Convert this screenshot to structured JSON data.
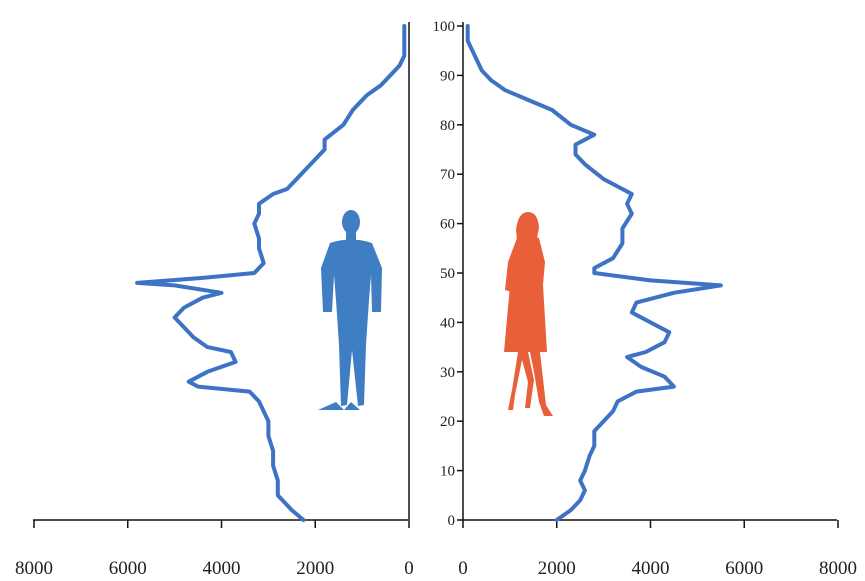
{
  "chart_data": {
    "type": "line",
    "title": "",
    "xlabel": "",
    "ylabel": "",
    "ylim": [
      0,
      100
    ],
    "y_ticks": [
      "0",
      "10",
      "20",
      "30",
      "40",
      "50",
      "60",
      "70",
      "80",
      "90",
      "100"
    ],
    "x_ticks_left": [
      "8000",
      "6000",
      "4000",
      "2000",
      "0"
    ],
    "x_ticks_right": [
      "0",
      "2000",
      "4000",
      "6000",
      "8000"
    ],
    "xlim": [
      0,
      8000
    ],
    "line_color": "#3d72c4",
    "series": [
      {
        "side": "left",
        "points": [
          [
            2250,
            0
          ],
          [
            2500,
            2
          ],
          [
            2800,
            5
          ],
          [
            2800,
            8
          ],
          [
            2900,
            11
          ],
          [
            2900,
            14
          ],
          [
            3000,
            17
          ],
          [
            3000,
            20
          ],
          [
            3100,
            22
          ],
          [
            3200,
            24
          ],
          [
            3400,
            26
          ],
          [
            4500,
            27
          ],
          [
            4700,
            28
          ],
          [
            4300,
            30
          ],
          [
            3700,
            32
          ],
          [
            3800,
            34
          ],
          [
            4300,
            35
          ],
          [
            4600,
            37
          ],
          [
            4800,
            39
          ],
          [
            5000,
            41
          ],
          [
            4800,
            43
          ],
          [
            4400,
            45
          ],
          [
            4000,
            46
          ],
          [
            5000,
            47.5
          ],
          [
            5800,
            48
          ],
          [
            4400,
            49
          ],
          [
            3300,
            50
          ],
          [
            3100,
            52
          ],
          [
            3200,
            55
          ],
          [
            3200,
            57
          ],
          [
            3300,
            60
          ],
          [
            3200,
            62
          ],
          [
            3200,
            64
          ],
          [
            2900,
            66
          ],
          [
            2600,
            67
          ],
          [
            2400,
            69
          ],
          [
            2100,
            72
          ],
          [
            1800,
            75
          ],
          [
            1800,
            77
          ],
          [
            1400,
            80
          ],
          [
            1200,
            83
          ],
          [
            900,
            86
          ],
          [
            600,
            88
          ],
          [
            400,
            90
          ],
          [
            200,
            92
          ],
          [
            100,
            94
          ],
          [
            100,
            98
          ],
          [
            100,
            100
          ]
        ]
      },
      {
        "side": "right",
        "points": [
          [
            2000,
            0
          ],
          [
            2300,
            2
          ],
          [
            2500,
            4
          ],
          [
            2600,
            6
          ],
          [
            2500,
            8
          ],
          [
            2600,
            10
          ],
          [
            2700,
            13
          ],
          [
            2800,
            15
          ],
          [
            2800,
            18
          ],
          [
            3000,
            20
          ],
          [
            3200,
            22
          ],
          [
            3300,
            24
          ],
          [
            3700,
            26
          ],
          [
            4500,
            27
          ],
          [
            4300,
            29
          ],
          [
            3800,
            31
          ],
          [
            3500,
            33
          ],
          [
            3900,
            34
          ],
          [
            4300,
            36
          ],
          [
            4400,
            38
          ],
          [
            4000,
            40
          ],
          [
            3600,
            42
          ],
          [
            3700,
            44
          ],
          [
            4500,
            46
          ],
          [
            5500,
            47.5
          ],
          [
            4000,
            48.5
          ],
          [
            2800,
            50
          ],
          [
            2800,
            51
          ],
          [
            3200,
            53
          ],
          [
            3400,
            56
          ],
          [
            3400,
            59
          ],
          [
            3600,
            62
          ],
          [
            3500,
            64
          ],
          [
            3600,
            66
          ],
          [
            3400,
            67
          ],
          [
            3000,
            69
          ],
          [
            2600,
            72
          ],
          [
            2400,
            74
          ],
          [
            2400,
            76
          ],
          [
            2800,
            78
          ],
          [
            2300,
            80
          ],
          [
            1900,
            83
          ],
          [
            1400,
            85
          ],
          [
            900,
            87
          ],
          [
            600,
            89
          ],
          [
            400,
            91
          ],
          [
            300,
            93
          ],
          [
            200,
            95
          ],
          [
            100,
            97
          ],
          [
            100,
            100
          ]
        ]
      }
    ],
    "figures": [
      {
        "side": "left",
        "icon": "man-silhouette-icon",
        "color": "#3f7ec2"
      },
      {
        "side": "right",
        "icon": "woman-silhouette-icon",
        "color": "#e8603a"
      }
    ],
    "legend": "none",
    "grid": false
  }
}
